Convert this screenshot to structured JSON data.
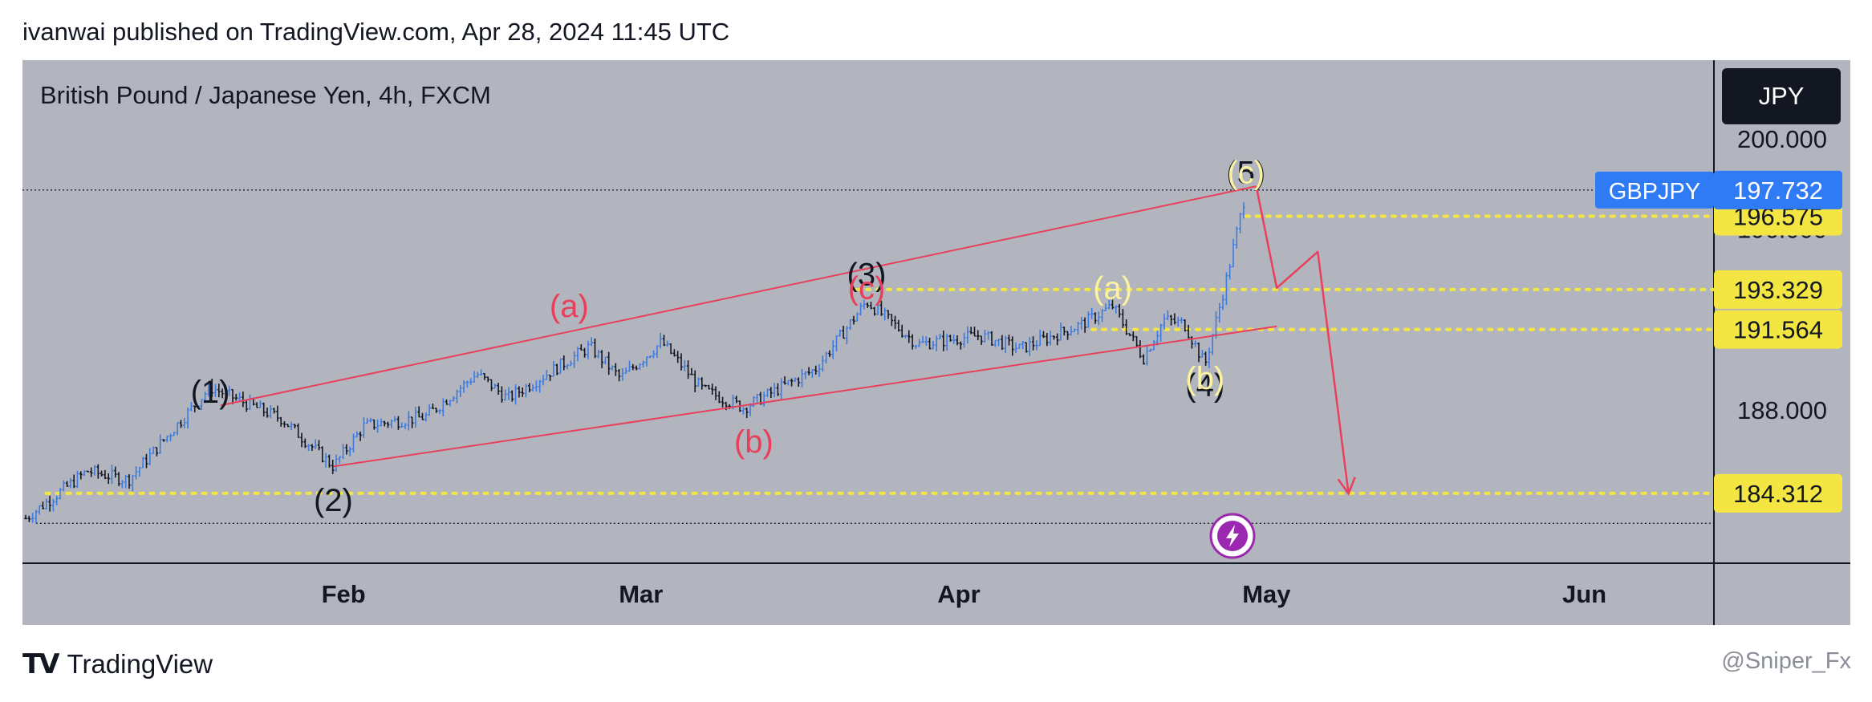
{
  "header": {
    "publish_line": "ivanwai published on TradingView.com, Apr 28, 2024 11:45 UTC"
  },
  "chart": {
    "title": "British Pound / Japanese Yen, 4h, FXCM",
    "currency_button": "JPY",
    "symbol_tag": "GBPJPY",
    "colors": {
      "panel_bg": "#b2b5be",
      "candle_up": "#3d7be0",
      "candle_down": "#131722",
      "channel": "#e8405c",
      "level_line": "#f4e642",
      "price_tag_blue": "#2f7bf5",
      "label_red": "#e8405c",
      "label_yellow": "#fbf3a0",
      "label_black": "#131722"
    }
  },
  "chart_data": {
    "type": "candlestick",
    "symbol": "GBPJPY",
    "timeframe": "4h",
    "y_ticks": [
      "200.000",
      "196.000",
      "188.000"
    ],
    "x_ticks": [
      "Feb",
      "Mar",
      "Apr",
      "May",
      "Jun"
    ],
    "current_price": "197.732",
    "levels": [
      {
        "price": 196.575,
        "label": "196.575"
      },
      {
        "price": 193.329,
        "label": "193.329"
      },
      {
        "price": 191.564,
        "label": "191.564"
      },
      {
        "price": 184.312,
        "label": "184.312"
      }
    ],
    "path_points": [
      {
        "date": "2024-01-01",
        "price": 183.2
      },
      {
        "date": "2024-01-07",
        "price": 185.3
      },
      {
        "date": "2024-01-11",
        "price": 184.9
      },
      {
        "date": "2024-01-19",
        "price": 189.0
      },
      {
        "date": "2024-01-26",
        "price": 187.6
      },
      {
        "date": "2024-01-31",
        "price": 185.5
      },
      {
        "date": "2024-02-03",
        "price": 187.3
      },
      {
        "date": "2024-02-09",
        "price": 187.7
      },
      {
        "date": "2024-02-14",
        "price": 189.6
      },
      {
        "date": "2024-02-17",
        "price": 188.5
      },
      {
        "date": "2024-02-25",
        "price": 190.8
      },
      {
        "date": "2024-02-28",
        "price": 189.4
      },
      {
        "date": "2024-03-03",
        "price": 191.0
      },
      {
        "date": "2024-03-07",
        "price": 188.9
      },
      {
        "date": "2024-03-11",
        "price": 188.1
      },
      {
        "date": "2024-03-18",
        "price": 189.8
      },
      {
        "date": "2024-03-23",
        "price": 192.8
      },
      {
        "date": "2024-03-28",
        "price": 190.9
      },
      {
        "date": "2024-04-03",
        "price": 191.3
      },
      {
        "date": "2024-04-07",
        "price": 190.7
      },
      {
        "date": "2024-04-13",
        "price": 191.8
      },
      {
        "date": "2024-04-16",
        "price": 192.6
      },
      {
        "date": "2024-04-19",
        "price": 190.3
      },
      {
        "date": "2024-04-21",
        "price": 192.0
      },
      {
        "date": "2024-04-23",
        "price": 191.8
      },
      {
        "date": "2024-04-25",
        "price": 190.0
      },
      {
        "date": "2024-04-27",
        "price": 193.6
      },
      {
        "date": "2024-04-29",
        "price": 197.7
      }
    ],
    "projection": [
      {
        "date": "2024-04-30",
        "price": 197.9
      },
      {
        "date": "2024-05-02",
        "price": 193.4
      },
      {
        "date": "2024-05-06",
        "price": 195.0
      },
      {
        "date": "2024-05-09",
        "price": 184.3
      }
    ],
    "channel": {
      "upper": [
        {
          "date": "2024-01-20",
          "price": 188.2
        },
        {
          "date": "2024-04-30",
          "price": 197.9
        }
      ],
      "lower": [
        {
          "date": "2024-01-31",
          "price": 185.5
        },
        {
          "date": "2024-05-02",
          "price": 191.7
        }
      ]
    },
    "wave_labels": [
      {
        "text": "(1)",
        "date": "2024-01-19",
        "price": 188.7,
        "color": "black"
      },
      {
        "text": "(2)",
        "date": "2024-01-31",
        "price": 183.9,
        "color": "black"
      },
      {
        "text": "(3)",
        "date": "2024-03-23",
        "price": 193.9,
        "color": "black"
      },
      {
        "text": "(4)",
        "date": "2024-04-25",
        "price": 189.0,
        "color": "black"
      },
      {
        "text": "(5)",
        "date": "2024-04-29",
        "price": 198.4,
        "color": "black"
      },
      {
        "text": "(a)",
        "date": "2024-02-23",
        "price": 192.5,
        "color": "red"
      },
      {
        "text": "(b)",
        "date": "2024-03-12",
        "price": 186.5,
        "color": "red"
      },
      {
        "text": "(c)",
        "date": "2024-03-23",
        "price": 193.3,
        "color": "red"
      },
      {
        "text": "(a)",
        "date": "2024-04-16",
        "price": 193.3,
        "color": "yellow"
      },
      {
        "text": "(b)",
        "date": "2024-04-25",
        "price": 189.3,
        "color": "yellow"
      },
      {
        "text": "(c)",
        "date": "2024-04-29",
        "price": 198.4,
        "color": "yellow"
      }
    ]
  },
  "footer": {
    "brand": "TradingView",
    "brand_mark": "TV",
    "watermark": "@Sniper_Fx"
  }
}
